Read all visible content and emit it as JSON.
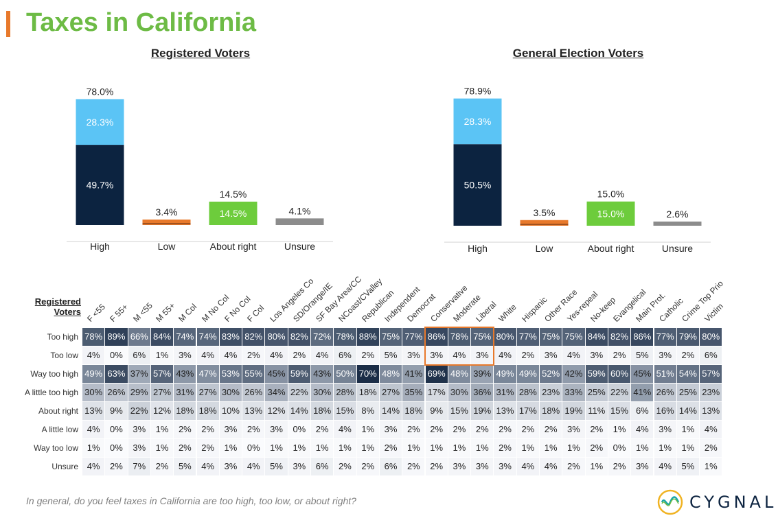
{
  "page": {
    "title": "Taxes in California",
    "question": "In general, do you feel taxes in California are too high, too low, or about right?",
    "logo_text": "CYGNAL"
  },
  "colors": {
    "title_green": "#6dbb45",
    "accent_orange": "#e8792b",
    "navy": "#0c2340",
    "light_blue": "#5bc4f5",
    "orange": "#e8792b",
    "green": "#6dcc3c",
    "gray": "#8c8c8c"
  },
  "chart_data": [
    {
      "type": "bar",
      "title": "Registered Voters",
      "categories": [
        "High",
        "Low",
        "About right",
        "Unsure"
      ],
      "totals": [
        "78.0%",
        "3.4%",
        "14.5%",
        "4.1%"
      ],
      "series": [
        {
          "name": "Way too high",
          "values": [
            49.7,
            0.9,
            14.5,
            4.1
          ]
        },
        {
          "name": "A little too high",
          "values": [
            28.3,
            2.5,
            0,
            0
          ]
        }
      ],
      "segment_labels": [
        [
          "49.7%",
          "28.3%"
        ],
        [
          "",
          ""
        ],
        [
          "14.5%",
          ""
        ],
        [
          "",
          ""
        ]
      ],
      "ylim": [
        0,
        85
      ]
    },
    {
      "type": "bar",
      "title": "General Election Voters",
      "categories": [
        "High",
        "Low",
        "About right",
        "Unsure"
      ],
      "totals": [
        "78.9%",
        "3.5%",
        "15.0%",
        "2.6%"
      ],
      "series": [
        {
          "name": "Way too high",
          "values": [
            50.5,
            0.9,
            15.0,
            2.6
          ]
        },
        {
          "name": "A little too high",
          "values": [
            28.3,
            2.6,
            0,
            0
          ]
        }
      ],
      "segment_labels": [
        [
          "50.5%",
          "28.3%"
        ],
        [
          "",
          ""
        ],
        [
          "15.0%",
          ""
        ],
        [
          "",
          ""
        ]
      ],
      "ylim": [
        0,
        85
      ]
    },
    {
      "type": "table",
      "title": "Registered Voters",
      "columns": [
        "F <55",
        "F 55+",
        "M <55",
        "M 55+",
        "M Col",
        "M No Col",
        "F No Col",
        "F Col",
        "Los Angeles Co",
        "SD/Orange/IE",
        "SF Bay Area/CC",
        "NCoast/CValley",
        "Republican",
        "Independent",
        "Democrat",
        "Conservative",
        "Moderate",
        "Liberal",
        "White",
        "Hispanic",
        "Other Race",
        "Yes-repeal",
        "No-keep",
        "Evangelical",
        "Main Prot.",
        "Catholic",
        "Crime Top Prio",
        "Victim"
      ],
      "rows": [
        {
          "label": "Too high",
          "values": [
            78,
            89,
            66,
            84,
            74,
            74,
            83,
            82,
            80,
            82,
            72,
            78,
            88,
            75,
            77,
            86,
            78,
            75,
            80,
            77,
            75,
            75,
            84,
            82,
            86,
            77,
            79,
            80
          ]
        },
        {
          "label": "Too low",
          "values": [
            4,
            0,
            6,
            1,
            3,
            4,
            4,
            2,
            4,
            2,
            4,
            6,
            2,
            5,
            3,
            3,
            4,
            3,
            4,
            2,
            3,
            4,
            3,
            2,
            5,
            3,
            2,
            6
          ]
        },
        {
          "label": "Way too high",
          "values": [
            49,
            63,
            37,
            57,
            43,
            47,
            53,
            55,
            45,
            59,
            43,
            50,
            70,
            48,
            41,
            69,
            48,
            39,
            49,
            49,
            52,
            42,
            59,
            60,
            45,
            51,
            54,
            57
          ]
        },
        {
          "label": "A little too high",
          "values": [
            30,
            26,
            29,
            27,
            31,
            27,
            30,
            26,
            34,
            22,
            30,
            28,
            18,
            27,
            35,
            17,
            30,
            36,
            31,
            28,
            23,
            33,
            25,
            22,
            41,
            26,
            25,
            23
          ]
        },
        {
          "label": "About right",
          "values": [
            13,
            9,
            22,
            12,
            18,
            18,
            10,
            13,
            12,
            14,
            18,
            15,
            8,
            14,
            18,
            9,
            15,
            19,
            13,
            17,
            18,
            19,
            11,
            15,
            6,
            16,
            14,
            13
          ]
        },
        {
          "label": "A little low",
          "values": [
            4,
            0,
            3,
            1,
            2,
            2,
            3,
            2,
            3,
            0,
            2,
            4,
            1,
            3,
            2,
            2,
            2,
            2,
            2,
            2,
            2,
            3,
            2,
            1,
            4,
            3,
            1,
            4
          ]
        },
        {
          "label": "Way too low",
          "values": [
            1,
            0,
            3,
            1,
            2,
            2,
            1,
            0,
            1,
            1,
            1,
            1,
            1,
            2,
            1,
            1,
            1,
            1,
            2,
            1,
            1,
            1,
            2,
            0,
            1,
            1,
            1,
            2
          ]
        },
        {
          "label": "Unsure",
          "values": [
            4,
            2,
            7,
            2,
            5,
            4,
            3,
            4,
            5,
            3,
            6,
            2,
            2,
            6,
            2,
            2,
            3,
            3,
            3,
            4,
            4,
            2,
            1,
            2,
            3,
            4,
            5,
            1
          ]
        }
      ],
      "value_suffix": "%",
      "row_label_header": "Registered Voters",
      "highlighted_columns": [
        "Conservative",
        "Moderate",
        "Liberal"
      ],
      "highlighted_rows": [
        "Too high",
        "Too low"
      ]
    }
  ]
}
